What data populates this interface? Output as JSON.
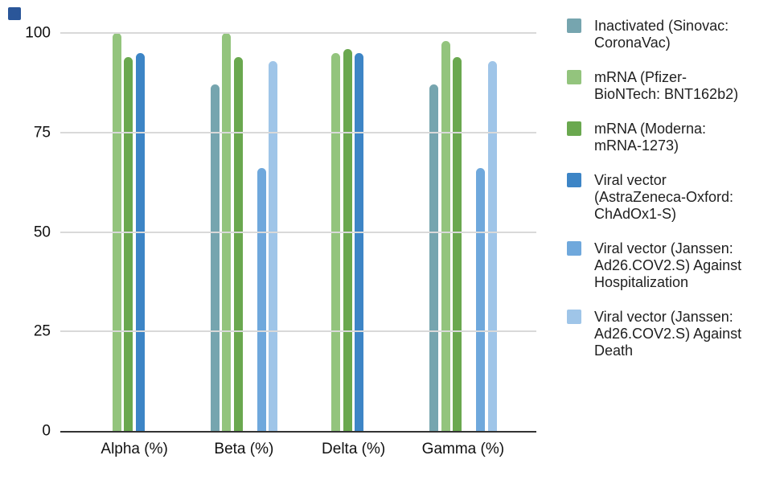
{
  "decorations": {
    "top_left_square_color": "#2a5699"
  },
  "axes": {
    "y_ticks": [
      "0",
      "25",
      "50",
      "75",
      "100"
    ],
    "x_labels": [
      "Alpha (%)",
      "Beta (%)",
      "Delta (%)",
      "Gamma (%)"
    ]
  },
  "colors": {
    "gridline": "#d9d9d9",
    "axis_line": "#333333",
    "text": "#111111"
  },
  "chart_data": {
    "type": "bar",
    "title": "",
    "categories": [
      "Alpha (%)",
      "Beta (%)",
      "Delta (%)",
      "Gamma (%)"
    ],
    "ylim": [
      0,
      100
    ],
    "yticks": [
      0,
      25,
      50,
      75,
      100
    ],
    "grid": "horizontal",
    "legend_position": "right",
    "series": [
      {
        "name": "Inactivated (Sinovac: CoronaVac)",
        "legend_label": "Inactivated (Sinovac:\nCoronaVac)",
        "color": "#76a5af",
        "values": [
          null,
          87,
          null,
          87
        ]
      },
      {
        "name": "mRNA (Pfizer-BioNTech: BNT162b2)",
        "legend_label": "mRNA (Pfizer-\nBioNTech: BNT162b2)",
        "color": "#93c47d",
        "values": [
          100,
          100,
          95,
          98
        ]
      },
      {
        "name": "mRNA (Moderna: mRNA-1273)",
        "legend_label": "mRNA (Moderna:\nmRNA-1273)",
        "color": "#6aa84f",
        "values": [
          94,
          94,
          96,
          94
        ]
      },
      {
        "name": "Viral vector (AstraZeneca-Oxford: ChAdOx1-S)",
        "legend_label": "Viral vector\n(AstraZeneca-Oxford:\nChAdOx1-S)",
        "color": "#3d85c6",
        "values": [
          95,
          null,
          95,
          null
        ]
      },
      {
        "name": "Viral vector (Janssen: Ad26.COV2.S) Against Hospitalization",
        "legend_label": "Viral vector (Janssen:\nAd26.COV2.S) Against\nHospitalization",
        "color": "#6fa8dc",
        "values": [
          null,
          66,
          null,
          66
        ]
      },
      {
        "name": "Viral vector (Janssen: Ad26.COV2.S) Against Death",
        "legend_label": "Viral vector (Janssen:\nAd26.COV2.S) Against\nDeath",
        "color": "#9fc5e8",
        "values": [
          null,
          93,
          null,
          93
        ]
      }
    ]
  }
}
